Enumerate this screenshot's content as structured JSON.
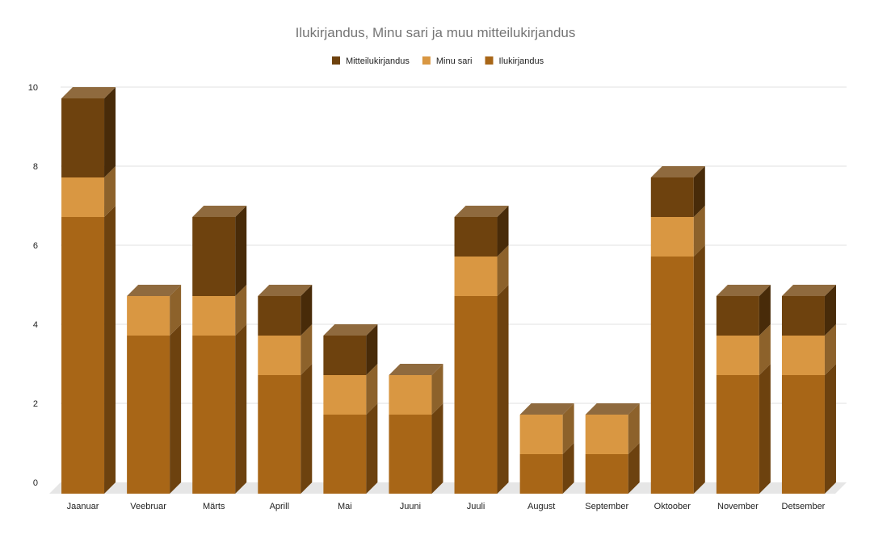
{
  "chart_data": {
    "type": "bar",
    "stacked": true,
    "style": "3d",
    "title": "Ilukirjandus, Minu sari ja muu mitteilukirjandus",
    "categories": [
      "Jaanuar",
      "Veebruar",
      "Märts",
      "Aprill",
      "Mai",
      "Juuni",
      "Juuli",
      "August",
      "September",
      "Oktoober",
      "November",
      "Detsember"
    ],
    "series": [
      {
        "name": "Ilukirjandus",
        "color": "#a86617",
        "values": [
          7,
          4,
          4,
          3,
          2,
          2,
          5,
          1,
          1,
          6,
          3,
          3
        ]
      },
      {
        "name": "Minu sari",
        "color": "#d99742",
        "values": [
          1,
          1,
          1,
          1,
          1,
          1,
          1,
          1,
          1,
          1,
          1,
          1
        ]
      },
      {
        "name": "Mitteilukirjandus",
        "color": "#6e420e",
        "values": [
          2,
          0,
          2,
          1,
          1,
          0,
          1,
          0,
          0,
          1,
          1,
          1
        ]
      }
    ],
    "legend_order": [
      "Mitteilukirjandus",
      "Minu sari",
      "Ilukirjandus"
    ],
    "legend_position": "top",
    "yticks": [
      0,
      2,
      4,
      6,
      8,
      10
    ],
    "ylim": [
      0,
      10
    ],
    "grid": true,
    "xlabel": "",
    "ylabel": ""
  }
}
